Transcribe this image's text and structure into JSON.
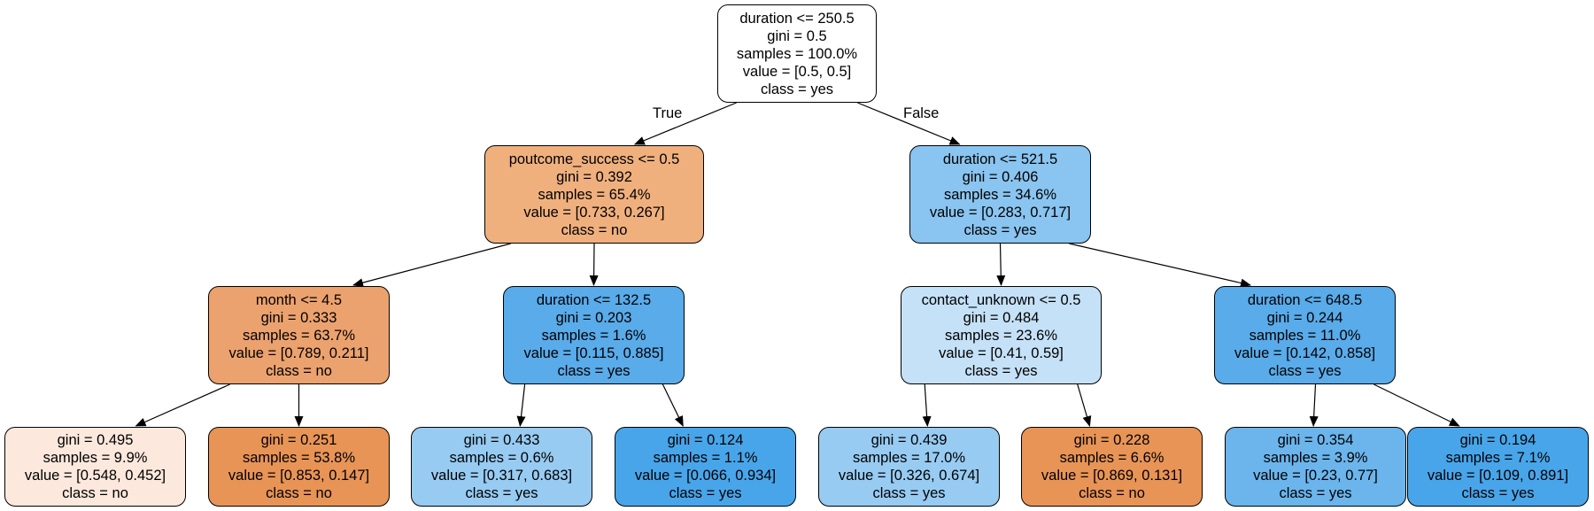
{
  "edge_labels": {
    "true_label": "True",
    "false_label": "False"
  },
  "colors": {
    "white": "#ffffff",
    "orange_light": "#fce8dc",
    "orange_medium": "#f0b07e",
    "orange": "#eca26e",
    "orange_dark": "#e89456",
    "blue_light": "#c5e1f7",
    "blue_medium": "#8ac4f0",
    "blue_soft": "#97cbf2",
    "blue": "#6bb5ec",
    "blue_strong": "#59abea",
    "blue_dark": "#48a5ea"
  },
  "nodes": [
    {
      "id": "n0",
      "color": "white",
      "lines": [
        "duration <= 250.5",
        "gini = 0.5",
        "samples = 100.0%",
        "value = [0.5, 0.5]",
        "class = yes"
      ]
    },
    {
      "id": "n1",
      "color": "orange_medium",
      "lines": [
        "poutcome_success <= 0.5",
        "gini = 0.392",
        "samples = 65.4%",
        "value = [0.733, 0.267]",
        "class = no"
      ]
    },
    {
      "id": "n2",
      "color": "blue_medium",
      "lines": [
        "duration <= 521.5",
        "gini = 0.406",
        "samples = 34.6%",
        "value = [0.283, 0.717]",
        "class = yes"
      ]
    },
    {
      "id": "n3",
      "color": "orange",
      "lines": [
        "month <= 4.5",
        "gini = 0.333",
        "samples = 63.7%",
        "value = [0.789, 0.211]",
        "class = no"
      ]
    },
    {
      "id": "n4",
      "color": "blue_strong",
      "lines": [
        "duration <= 132.5",
        "gini = 0.203",
        "samples = 1.6%",
        "value = [0.115, 0.885]",
        "class = yes"
      ]
    },
    {
      "id": "n5",
      "color": "blue_light",
      "lines": [
        "contact_unknown <= 0.5",
        "gini = 0.484",
        "samples = 23.6%",
        "value = [0.41, 0.59]",
        "class = yes"
      ]
    },
    {
      "id": "n6",
      "color": "blue_strong",
      "lines": [
        "duration <= 648.5",
        "gini = 0.244",
        "samples = 11.0%",
        "value = [0.142, 0.858]",
        "class = yes"
      ]
    },
    {
      "id": "n7",
      "color": "orange_light",
      "lines": [
        "gini = 0.495",
        "samples = 9.9%",
        "value = [0.548, 0.452]",
        "class = no"
      ]
    },
    {
      "id": "n8",
      "color": "orange_dark",
      "lines": [
        "gini = 0.251",
        "samples = 53.8%",
        "value = [0.853, 0.147]",
        "class = no"
      ]
    },
    {
      "id": "n9",
      "color": "blue_soft",
      "lines": [
        "gini = 0.433",
        "samples = 0.6%",
        "value = [0.317, 0.683]",
        "class = yes"
      ]
    },
    {
      "id": "n10",
      "color": "blue_dark",
      "lines": [
        "gini = 0.124",
        "samples = 1.1%",
        "value = [0.066, 0.934]",
        "class = yes"
      ]
    },
    {
      "id": "n11",
      "color": "blue_soft",
      "lines": [
        "gini = 0.439",
        "samples = 17.0%",
        "value = [0.326, 0.674]",
        "class = yes"
      ]
    },
    {
      "id": "n12",
      "color": "orange_dark",
      "lines": [
        "gini = 0.228",
        "samples = 6.6%",
        "value = [0.869, 0.131]",
        "class = no"
      ]
    },
    {
      "id": "n13",
      "color": "blue",
      "lines": [
        "gini = 0.354",
        "samples = 3.9%",
        "value = [0.23, 0.77]",
        "class = yes"
      ]
    },
    {
      "id": "n14",
      "color": "blue_dark",
      "lines": [
        "gini = 0.194",
        "samples = 7.1%",
        "value = [0.109, 0.891]",
        "class = yes"
      ]
    }
  ],
  "edges": [
    {
      "from": "n0",
      "to": "n1"
    },
    {
      "from": "n0",
      "to": "n2"
    },
    {
      "from": "n1",
      "to": "n3"
    },
    {
      "from": "n1",
      "to": "n4"
    },
    {
      "from": "n2",
      "to": "n5"
    },
    {
      "from": "n2",
      "to": "n6"
    },
    {
      "from": "n3",
      "to": "n7"
    },
    {
      "from": "n3",
      "to": "n8"
    },
    {
      "from": "n4",
      "to": "n9"
    },
    {
      "from": "n4",
      "to": "n10"
    },
    {
      "from": "n5",
      "to": "n11"
    },
    {
      "from": "n5",
      "to": "n12"
    },
    {
      "from": "n6",
      "to": "n13"
    },
    {
      "from": "n6",
      "to": "n14"
    }
  ]
}
